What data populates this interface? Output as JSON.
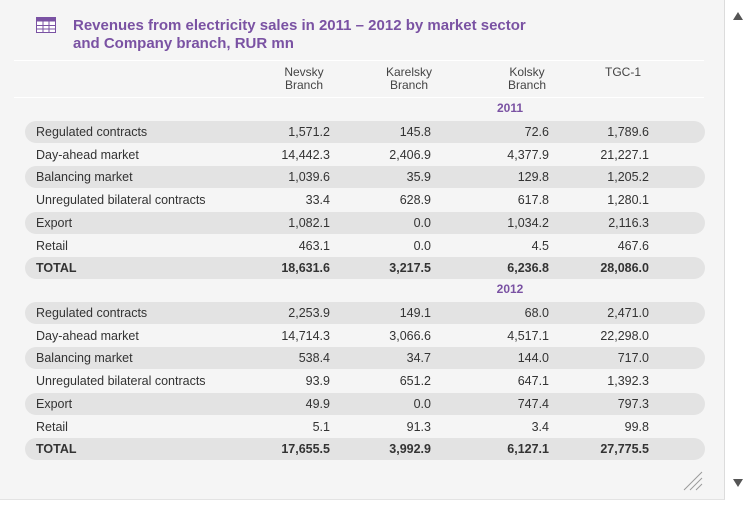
{
  "title": {
    "line1": "Revenues from electricity sales in 2011 – 2012 by market sector",
    "line2": "and Company branch, RUR mn"
  },
  "columns": [
    {
      "line1": "Nevsky",
      "line2": "Branch"
    },
    {
      "line1": "Karelsky",
      "line2": "Branch"
    },
    {
      "line1": "Kolsky",
      "line2": "Branch"
    },
    {
      "line1": "TGC-1",
      "line2": ""
    }
  ],
  "sections": [
    {
      "year": "2011",
      "rows": [
        {
          "label": "Regulated contracts",
          "values": [
            "1,571.2",
            "145.8",
            "72.6",
            "1,789.6"
          ]
        },
        {
          "label": "Day-ahead market",
          "values": [
            "14,442.3",
            "2,406.9",
            "4,377.9",
            "21,227.1"
          ]
        },
        {
          "label": "Balancing market",
          "values": [
            "1,039.6",
            "35.9",
            "129.8",
            "1,205.2"
          ]
        },
        {
          "label": "Unregulated bilateral contracts",
          "values": [
            "33.4",
            "628.9",
            "617.8",
            "1,280.1"
          ]
        },
        {
          "label": "Export",
          "values": [
            "1,082.1",
            "0.0",
            "1,034.2",
            "2,116.3"
          ]
        },
        {
          "label": "Retail",
          "values": [
            "463.1",
            "0.0",
            "4.5",
            "467.6"
          ]
        },
        {
          "label": "TOTAL",
          "values": [
            "18,631.6",
            "3,217.5",
            "6,236.8",
            "28,086.0"
          ]
        }
      ]
    },
    {
      "year": "2012",
      "rows": [
        {
          "label": "Regulated contracts",
          "values": [
            "2,253.9",
            "149.1",
            "68.0",
            "2,471.0"
          ]
        },
        {
          "label": "Day-ahead market",
          "values": [
            "14,714.3",
            "3,066.6",
            "4,517.1",
            "22,298.0"
          ]
        },
        {
          "label": "Balancing market",
          "values": [
            "538.4",
            "34.7",
            "144.0",
            "717.0"
          ]
        },
        {
          "label": "Unregulated bilateral contracts",
          "values": [
            "93.9",
            "651.2",
            "647.1",
            "1,392.3"
          ]
        },
        {
          "label": "Export",
          "values": [
            "49.9",
            "0.0",
            "747.4",
            "797.3"
          ]
        },
        {
          "label": "Retail",
          "values": [
            "5.1",
            "91.3",
            "3.4",
            "99.8"
          ]
        },
        {
          "label": "TOTAL",
          "values": [
            "17,655.5",
            "3,992.9",
            "6,127.1",
            "27,775.5"
          ]
        }
      ]
    }
  ],
  "colors": {
    "title": "#7a52a3",
    "row_shade": "#e3e3e3",
    "panel_bg": "#f5f5f5"
  },
  "icons": {
    "table": "table-icon",
    "scroll_up": "scroll-up-arrow-icon",
    "scroll_down": "scroll-down-arrow-icon",
    "resize": "resize-grip-icon"
  }
}
